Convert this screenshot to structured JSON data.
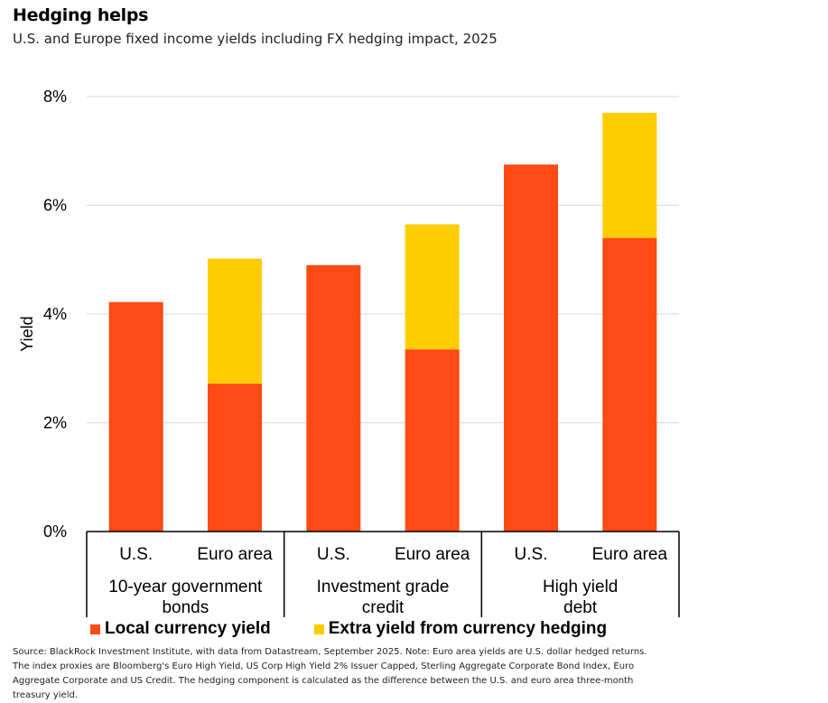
{
  "title": "Hedging helps",
  "subtitle": "U.S. and Europe fixed income yields including FX hedging impact, 2025",
  "source": "Source: BlackRock Investment Institute, with data from Datastream, September 2025. Note: Euro area yields are U.S. dollar hedged returns. The index proxies are Bloomberg's Euro High Yield, US Corp High Yield 2% Issuer Capped, Sterling Aggregate Corporate Bond Index, Euro Aggregate Corporate and US Credit. The hedging component is calculated as the difference between the U.S. and euro area three-month treasury yield.",
  "colors": {
    "local": "#fe4a14",
    "hedge": "#ffcc00",
    "grid": "#d9d9d9",
    "axis": "#000000"
  },
  "chart_data": {
    "type": "bar",
    "stacked": true,
    "ylabel": "Yield",
    "ylim": [
      0,
      8
    ],
    "yticks": [
      "0%",
      "2%",
      "4%",
      "6%",
      "8%"
    ],
    "grid": true,
    "legend_position": "bottom",
    "categories": [
      "U.S.",
      "Euro area",
      "U.S.",
      "Euro area",
      "U.S.",
      "Euro area"
    ],
    "groups": [
      {
        "label": "10-year government bonds",
        "lines": [
          "10-year government",
          "bonds"
        ]
      },
      {
        "label": "Investment grade credit",
        "lines": [
          "Investment grade",
          "credit"
        ]
      },
      {
        "label": "High yield debt",
        "lines": [
          "High yield",
          "debt"
        ]
      }
    ],
    "series": [
      {
        "name": "Local currency yield",
        "values": [
          4.22,
          2.72,
          4.9,
          3.35,
          6.75,
          5.4
        ]
      },
      {
        "name": "Extra yield from currency hedging",
        "values": [
          0,
          2.3,
          0,
          2.3,
          0,
          2.3
        ]
      }
    ]
  }
}
